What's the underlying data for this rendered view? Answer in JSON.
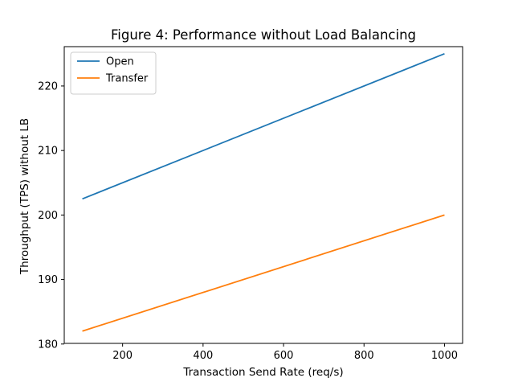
{
  "chart_data": {
    "type": "line",
    "title": "Figure 4: Performance without Load Balancing",
    "xlabel": "Transaction Send Rate (req/s)",
    "ylabel": "Throughput (TPS) without LB",
    "x": [
      100,
      1000
    ],
    "xlim": [
      55,
      1045
    ],
    "ylim": [
      180.1,
      226.1
    ],
    "xticks": [
      200,
      400,
      600,
      800,
      1000
    ],
    "yticks": [
      180,
      190,
      200,
      210,
      220
    ],
    "grid": false,
    "legend_position": "upper left",
    "series": [
      {
        "name": "Open",
        "values": [
          202.5,
          225
        ],
        "color": "#1f77b4"
      },
      {
        "name": "Transfer",
        "values": [
          182,
          200
        ],
        "color": "#ff7f0e"
      }
    ]
  }
}
